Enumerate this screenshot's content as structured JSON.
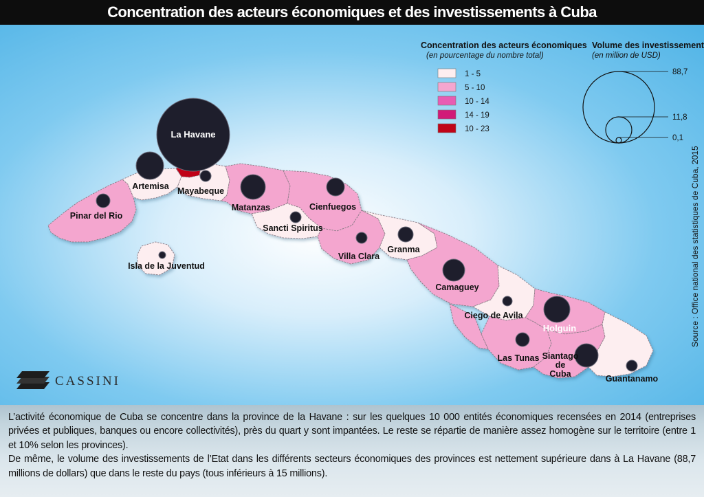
{
  "title": "Concentration des acteurs économiques et des investissements à Cuba",
  "legend_concentration": {
    "title": "Concentration des acteurs économiques",
    "subtitle": "(en pourcentage du nombre total)",
    "classes": [
      {
        "label": "1 - 5",
        "color": "#fdeef0"
      },
      {
        "label": "5 - 10",
        "color": "#f4a6cf"
      },
      {
        "label": "10 - 14",
        "color": "#e85cb3"
      },
      {
        "label": "14 - 19",
        "color": "#d11a78"
      },
      {
        "label": "10 - 23",
        "color": "#c00418"
      }
    ]
  },
  "legend_investment": {
    "title": "Volume des investissements",
    "subtitle": "(en million de USD)",
    "values": [
      "88,7",
      "11,8",
      "0,1"
    ]
  },
  "source": "Source : Office national des statistiques de Cuba, 2015",
  "logo": "CASSINI",
  "provinces": [
    {
      "name": "La Havane",
      "class": "10 - 23",
      "color": "#c00418"
    },
    {
      "name": "Artemisa",
      "class": "1 - 5",
      "color": "#fdeef0"
    },
    {
      "name": "Mayabeque",
      "class": "1 - 5",
      "color": "#fdeef0"
    },
    {
      "name": "Pinar del Rio",
      "class": "5 - 10",
      "color": "#f4a6cf"
    },
    {
      "name": "Isla de la Juventud",
      "class": "1 - 5",
      "color": "#fdeef0"
    },
    {
      "name": "Matanzas",
      "class": "5 - 10",
      "color": "#f4a6cf"
    },
    {
      "name": "Cienfuegos",
      "class": "5 - 10",
      "color": "#f4a6cf"
    },
    {
      "name": "Sancti Spiritus",
      "class": "1 - 5",
      "color": "#fdeef0"
    },
    {
      "name": "Villa Clara",
      "class": "5 - 10",
      "color": "#f4a6cf"
    },
    {
      "name": "Granma",
      "class": "1 - 5",
      "color": "#fdeef0"
    },
    {
      "name": "Camaguey",
      "class": "5 - 10",
      "color": "#f4a6cf"
    },
    {
      "name": "Ciego de Avila",
      "class": "1 - 5",
      "color": "#fdeef0"
    },
    {
      "name": "Holguin",
      "class": "5 - 10",
      "color": "#f4a6cf"
    },
    {
      "name": "Las Tunas",
      "class": "5 - 10",
      "color": "#f4a6cf"
    },
    {
      "name": "Siantago de Cuba",
      "class": "5 - 10",
      "color": "#f4a6cf"
    },
    {
      "name": "Guantanamo",
      "class": "1 - 5",
      "color": "#fdeef0"
    }
  ],
  "body_text": [
    "L’activité économique de Cuba se concentre dans la province de la Havane :  sur les quelques 10 000 entités économiques recensées  en 2014 (entreprises privées et publiques, banques ou encore collectivités), près du quart y sont impantées. Le reste se répartie de manière assez homogène sur le territoire (entre 1 et 10% selon les provinces).",
    "De même, le volume des investissements de l’Etat dans les différents secteurs économiques des provinces est nettement supérieure dans à La Havane (88,7 millions de dollars) que dans le reste du pays (tous inférieurs à 15 millions)."
  ]
}
